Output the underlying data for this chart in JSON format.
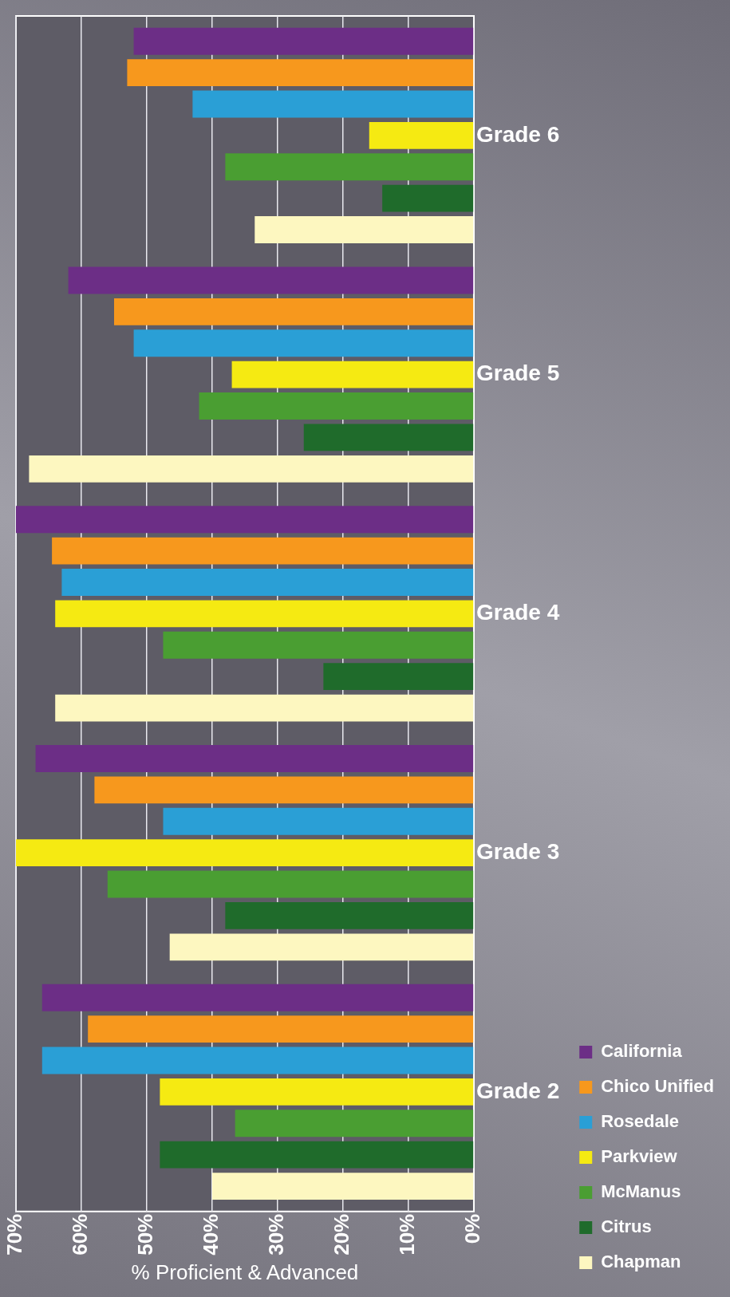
{
  "chart_data": {
    "type": "bar",
    "orientation": "horizontal",
    "xlabel": "% Proficient & Advanced",
    "categories": [
      "Grade 6",
      "Grade 5",
      "Grade 4",
      "Grade 3",
      "Grade 2"
    ],
    "series": [
      {
        "name": "California",
        "color": "#6c2e86",
        "values": [
          52,
          62,
          70,
          67,
          66
        ]
      },
      {
        "name": "Chico Unified",
        "color": "#f7981d",
        "values": [
          53,
          55,
          64.5,
          58,
          59
        ]
      },
      {
        "name": "Rosedale",
        "color": "#2a9fd6",
        "values": [
          43,
          52,
          63,
          47.5,
          66
        ]
      },
      {
        "name": "Parkview",
        "color": "#f5ea12",
        "values": [
          16,
          37,
          64,
          70,
          48
        ]
      },
      {
        "name": "McManus",
        "color": "#4a9e32",
        "values": [
          38,
          42,
          47.5,
          56,
          36.5
        ]
      },
      {
        "name": "Citrus",
        "color": "#1f6b2b",
        "values": [
          14,
          26,
          23,
          38,
          48
        ]
      },
      {
        "name": "Chapman",
        "color": "#fdf7c0",
        "values": [
          33.5,
          68,
          64,
          46.5,
          40
        ]
      }
    ],
    "xlim": [
      70,
      0
    ],
    "xticks": [
      {
        "value": 0,
        "label": "0%"
      },
      {
        "value": 10,
        "label": "10%"
      },
      {
        "value": 20,
        "label": "20%"
      },
      {
        "value": 30,
        "label": "30%"
      },
      {
        "value": 40,
        "label": "40%"
      },
      {
        "value": 50,
        "label": "50%"
      },
      {
        "value": 60,
        "label": "60%"
      },
      {
        "value": 70,
        "label": "70%"
      }
    ],
    "grid": "x",
    "legend": "right"
  }
}
